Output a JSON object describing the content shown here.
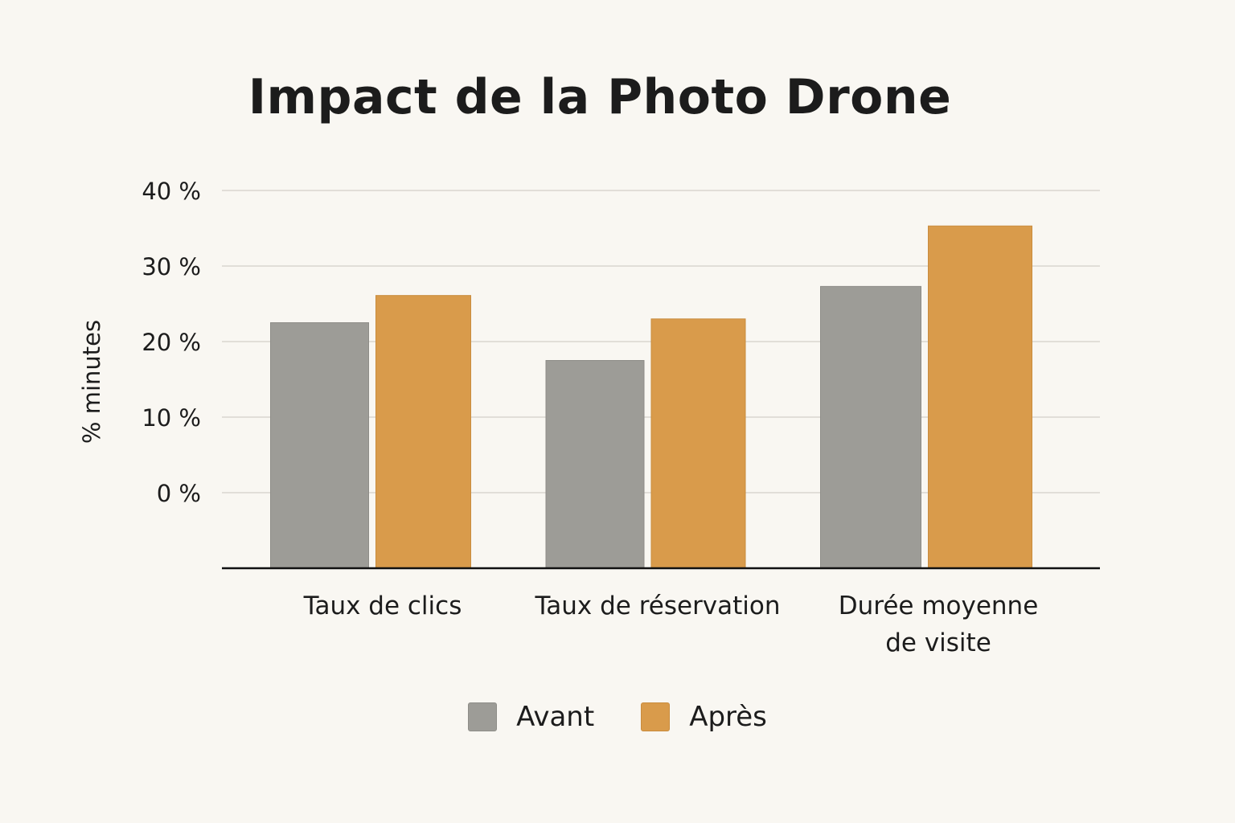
{
  "chart_data": {
    "type": "bar",
    "title": "Impact de la Photo Drone",
    "ylabel": "% minutes",
    "xlabel": "",
    "y_ticks": [
      "0 %",
      "10 %",
      "20 %",
      "30 %",
      "40 %"
    ],
    "y_tick_values": [
      0,
      10,
      20,
      30,
      40
    ],
    "ylim": [
      -10,
      40
    ],
    "grid": true,
    "legend_position": "bottom",
    "categories": [
      "Taux de clics",
      "Taux de réservation",
      "Durée moyenne de visite"
    ],
    "category_lines": [
      [
        "Taux de clics"
      ],
      [
        "Taux de réservation"
      ],
      [
        "Durée moyenne",
        "de visite"
      ]
    ],
    "series": [
      {
        "name": "Avant",
        "color": "#9d9c97",
        "values": [
          22.5,
          17.5,
          27.3
        ]
      },
      {
        "name": "Après",
        "color": "#d99b4b",
        "values": [
          26.1,
          23.0,
          35.3
        ]
      }
    ]
  }
}
